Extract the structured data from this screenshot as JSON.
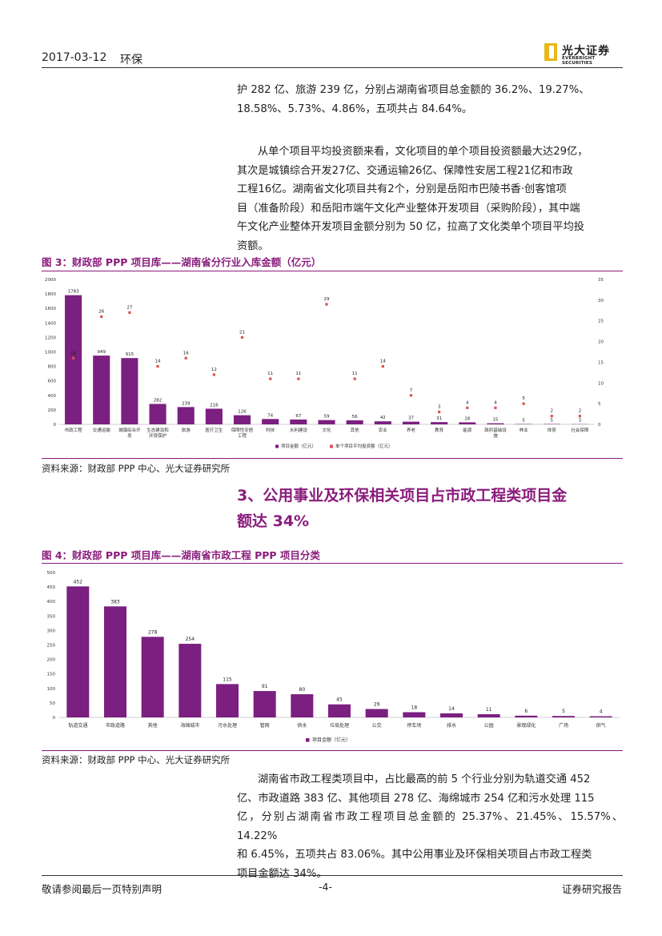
{
  "header": {
    "date": "2017-03-12",
    "category": "环保",
    "logo_cn": "光大证券",
    "logo_en": "EVERBRIGHT SECURITIES"
  },
  "para1": [
    "护 282 亿、旅游 239 亿，分别占湖南省项目总金额的 36.2%、19.27%、",
    "18.58%、5.73%、4.86%，五项共占 84.64%。"
  ],
  "para2": [
    "从单个项目平均投资额来看，文化项目的单个项目投资额最大达29亿，",
    "其次是城镇综合开发27亿、交通运输26亿、保障性安居工程21亿和市政",
    "工程16亿。湖南省文化项目共有2个，分别是岳阳市巴陵书香·创客馆项",
    "目（准备阶段）和岳阳市端午文化产业整体开发项目（采购阶段），其中端",
    "午文化产业整体开发项目金额分别为 50 亿，拉高了文化类单个项目平均投",
    "资额。"
  ],
  "fig3": {
    "title": "图 3：财政部 PPP 项目库——湖南省分行业入库金额（亿元）",
    "source": "资料来源：财政部 PPP 中心、光大证券研究所"
  },
  "section": {
    "line1": "3、公用事业及环保相关项目占市政工程类项目金",
    "line2": "额达 34%"
  },
  "fig4": {
    "title": "图 4：财政部 PPP 项目库——湖南省市政工程 PPP 项目分类",
    "source": "资料来源：财政部 PPP 中心、光大证券研究所"
  },
  "para3": [
    "湖南省市政工程类项目中，占比最高的前 5 个行业分别为轨道交通 452",
    "亿、市政道路 383 亿、其他项目 278 亿、海绵城市 254 亿和污水处理 115",
    "亿，分别占湖南省市政工程项目总金额的 25.37%、21.45%、15.57%、14.22%",
    "和 6.45%，五项共占 83.06%。其中公用事业及环保相关项目占市政工程类",
    "项目金额达 34%。"
  ],
  "footer": {
    "left": "敬请参阅最后一页特别声明",
    "center": "-4-",
    "right": "证券研究报告"
  },
  "colors": {
    "bar": "#7b1f80",
    "marker": "#d9534f",
    "accent": "#8a1c7c"
  },
  "chart_data": [
    {
      "type": "bar+scatter",
      "categories": [
        "市政工程",
        "交通运输",
        "城镇综合开发",
        "生态建设和环境保护",
        "旅游",
        "医疗卫生",
        "保障性安居工程",
        "科技",
        "水利建设",
        "文化",
        "其他",
        "农业",
        "养老",
        "教育",
        "能源",
        "政府基础设施",
        "林业",
        "体育",
        "社会保障"
      ],
      "category_lines": [
        [
          "市政工程"
        ],
        [
          "交通运输"
        ],
        [
          "城镇综合开",
          "发"
        ],
        [
          "生态建设和",
          "环境保护"
        ],
        [
          "旅游"
        ],
        [
          "医疗卫生"
        ],
        [
          "保障性安居",
          "工程"
        ],
        [
          "科技"
        ],
        [
          "水利建设"
        ],
        [
          "文化"
        ],
        [
          "其他"
        ],
        [
          "农业"
        ],
        [
          "养老"
        ],
        [
          "教育"
        ],
        [
          "能源"
        ],
        [
          "政府基础设",
          "施"
        ],
        [
          "林业"
        ],
        [
          "体育"
        ],
        [
          "社会保障"
        ]
      ],
      "series": [
        {
          "name": "项目金额（亿元）",
          "type": "bar",
          "axis": "left",
          "values": [
            1783,
            949,
            915,
            282,
            239,
            216,
            126,
            74,
            67,
            59,
            56,
            42,
            37,
            31,
            28,
            15,
            5,
            5,
            3
          ]
        },
        {
          "name": "单个项目平均投资额（亿元）",
          "type": "scatter",
          "axis": "right",
          "values": [
            16,
            26,
            27,
            14,
            16,
            12,
            21,
            11,
            11,
            29,
            11,
            14,
            7,
            3,
            4,
            4,
            5,
            2,
            2
          ]
        }
      ],
      "ylim_left": [
        0,
        2000
      ],
      "yticks_left": [
        0,
        200,
        400,
        600,
        800,
        1000,
        1200,
        1400,
        1600,
        1800,
        2000
      ],
      "ylim_right": [
        0,
        35
      ],
      "yticks_right": [
        0,
        5,
        10,
        15,
        20,
        25,
        30,
        35
      ],
      "legend": "bottom"
    },
    {
      "type": "bar",
      "categories": [
        "轨道交通",
        "市政道路",
        "其他",
        "海绵城市",
        "污水处理",
        "管网",
        "供水",
        "垃圾处理",
        "公交",
        "停车场",
        "排水",
        "公园",
        "景观绿化",
        "广场",
        "供气"
      ],
      "series": [
        {
          "name": "项目金额（亿元）",
          "values": [
            452,
            383,
            278,
            254,
            115,
            91,
            80,
            45,
            29,
            18,
            14,
            11,
            6,
            5,
            4
          ]
        }
      ],
      "ylim": [
        0,
        500
      ],
      "yticks": [
        0,
        50,
        100,
        150,
        200,
        250,
        300,
        350,
        400,
        450,
        500
      ],
      "legend": "bottom"
    }
  ]
}
